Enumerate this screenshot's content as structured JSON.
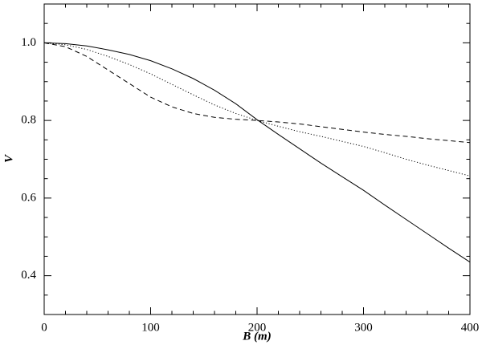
{
  "chart_data": {
    "type": "line",
    "x_label": "B (m)",
    "y_label": "V",
    "x": [
      0,
      20,
      40,
      60,
      80,
      100,
      120,
      140,
      160,
      180,
      200,
      220,
      240,
      260,
      280,
      300,
      320,
      340,
      360,
      380,
      400
    ],
    "series": [
      {
        "color": "#000000",
        "style": "solid",
        "values": [
          1.0,
          0.998,
          0.992,
          0.982,
          0.97,
          0.954,
          0.933,
          0.908,
          0.878,
          0.843,
          0.802,
          0.764,
          0.727,
          0.69,
          0.655,
          0.62,
          0.582,
          0.545,
          0.508,
          0.471,
          0.435
        ]
      },
      {
        "color": "#000000",
        "style": "dotted",
        "values": [
          1.0,
          0.995,
          0.983,
          0.965,
          0.944,
          0.92,
          0.893,
          0.866,
          0.84,
          0.818,
          0.8,
          0.785,
          0.771,
          0.759,
          0.746,
          0.733,
          0.717,
          0.7,
          0.685,
          0.671,
          0.657
        ]
      },
      {
        "color": "#000000",
        "style": "dashed",
        "values": [
          1.0,
          0.99,
          0.965,
          0.93,
          0.895,
          0.86,
          0.835,
          0.818,
          0.808,
          0.803,
          0.8,
          0.796,
          0.791,
          0.784,
          0.777,
          0.77,
          0.764,
          0.759,
          0.753,
          0.748,
          0.743
        ]
      }
    ],
    "xlim": [
      0,
      400
    ],
    "xticks": [
      0,
      100,
      200,
      300,
      400
    ],
    "ylim": [
      0.3,
      1.1
    ],
    "yticks": [
      0.4,
      0.6,
      0.8,
      {
        "value": 1,
        "label": "1.0"
      }
    ],
    "grid": false
  }
}
